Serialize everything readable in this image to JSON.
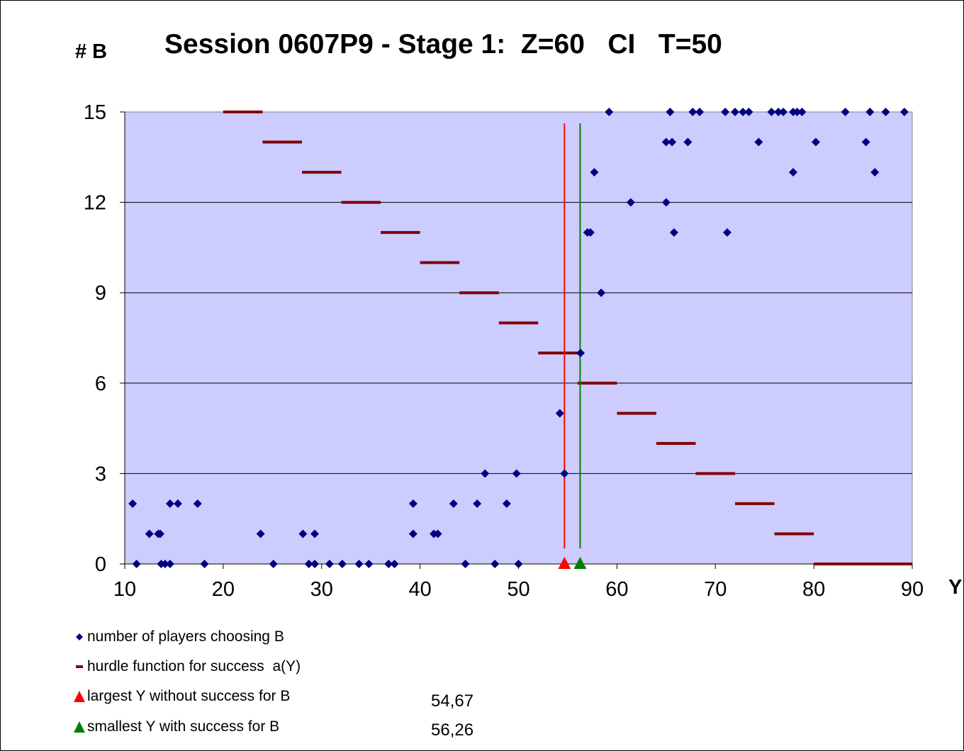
{
  "chart_data": {
    "type": "scatter",
    "title": "Session 0607P9 - Stage 1:  Z=60   CI   T=50",
    "ylabel": "# B",
    "xlabel": "Y",
    "xlim": [
      10,
      90
    ],
    "ylim": [
      0,
      15
    ],
    "x_ticks": [
      "10",
      "20",
      "30",
      "40",
      "50",
      "60",
      "70",
      "80",
      "90"
    ],
    "y_ticks": [
      "0",
      "3",
      "6",
      "9",
      "12",
      "15"
    ],
    "grid": "horizontal",
    "plot_background": "#ccccff",
    "series": [
      {
        "name": "number of players choosing B",
        "marker": "diamond",
        "color": "#000080",
        "points": [
          [
            10.8,
            2
          ],
          [
            11.2,
            0
          ],
          [
            12.5,
            1
          ],
          [
            13.4,
            1
          ],
          [
            13.6,
            1
          ],
          [
            13.7,
            0
          ],
          [
            14.1,
            0
          ],
          [
            14.6,
            0
          ],
          [
            14.6,
            2
          ],
          [
            15.4,
            2
          ],
          [
            17.4,
            2
          ],
          [
            18.1,
            0
          ],
          [
            23.8,
            1
          ],
          [
            25.1,
            0
          ],
          [
            28.1,
            1
          ],
          [
            28.7,
            0
          ],
          [
            29.3,
            1
          ],
          [
            29.3,
            0
          ],
          [
            30.8,
            0
          ],
          [
            32.1,
            0
          ],
          [
            33.8,
            0
          ],
          [
            34.8,
            0
          ],
          [
            36.8,
            0
          ],
          [
            37.4,
            0
          ],
          [
            39.3,
            2
          ],
          [
            39.3,
            1
          ],
          [
            41.4,
            1
          ],
          [
            41.8,
            1
          ],
          [
            43.4,
            2
          ],
          [
            44.6,
            0
          ],
          [
            45.8,
            2
          ],
          [
            46.6,
            3
          ],
          [
            47.6,
            0
          ],
          [
            48.8,
            2
          ],
          [
            49.8,
            3
          ],
          [
            50.0,
            0
          ],
          [
            54.2,
            5
          ],
          [
            54.67,
            3
          ],
          [
            56.3,
            7
          ],
          [
            57.0,
            11
          ],
          [
            57.3,
            11
          ],
          [
            57.7,
            13
          ],
          [
            58.4,
            9
          ],
          [
            59.2,
            15
          ],
          [
            61.4,
            12
          ],
          [
            65.0,
            14
          ],
          [
            65.0,
            12
          ],
          [
            65.4,
            15
          ],
          [
            65.6,
            14
          ],
          [
            65.8,
            11
          ],
          [
            67.2,
            14
          ],
          [
            67.7,
            15
          ],
          [
            68.4,
            15
          ],
          [
            71.2,
            11
          ],
          [
            71.0,
            15
          ],
          [
            72.0,
            15
          ],
          [
            72.8,
            15
          ],
          [
            73.4,
            15
          ],
          [
            74.4,
            14
          ],
          [
            75.7,
            15
          ],
          [
            76.4,
            15
          ],
          [
            76.9,
            15
          ],
          [
            77.9,
            13
          ],
          [
            77.9,
            15
          ],
          [
            78.3,
            15
          ],
          [
            78.8,
            15
          ],
          [
            80.2,
            14
          ],
          [
            83.2,
            15
          ],
          [
            85.3,
            14
          ],
          [
            85.7,
            15
          ],
          [
            86.2,
            13
          ],
          [
            87.3,
            15
          ],
          [
            89.2,
            15
          ]
        ]
      },
      {
        "name": "hurdle function for success  a(Y)",
        "marker": "dash",
        "color": "#800000",
        "segments": [
          {
            "from": 20,
            "to": 24,
            "y": 15
          },
          {
            "from": 24,
            "to": 28,
            "y": 14
          },
          {
            "from": 28,
            "to": 32,
            "y": 13
          },
          {
            "from": 32,
            "to": 36,
            "y": 12
          },
          {
            "from": 36,
            "to": 40,
            "y": 11
          },
          {
            "from": 40,
            "to": 44,
            "y": 10
          },
          {
            "from": 44,
            "to": 48,
            "y": 9
          },
          {
            "from": 48,
            "to": 52,
            "y": 8
          },
          {
            "from": 52,
            "to": 56,
            "y": 7
          },
          {
            "from": 56,
            "to": 60,
            "y": 6
          },
          {
            "from": 60,
            "to": 64,
            "y": 5
          },
          {
            "from": 64,
            "to": 68,
            "y": 4
          },
          {
            "from": 68,
            "to": 72,
            "y": 3
          },
          {
            "from": 72,
            "to": 76,
            "y": 2
          },
          {
            "from": 76,
            "to": 80,
            "y": 1
          },
          {
            "from": 80,
            "to": 90,
            "y": 0
          }
        ]
      },
      {
        "name": "largest Y without success for B",
        "marker": "triangle",
        "color": "#ff0000",
        "x": 54.67,
        "value_label": "54,67"
      },
      {
        "name": "smallest Y with success for B",
        "marker": "triangle",
        "color": "#008000",
        "x": 56.26,
        "value_label": "56,26"
      }
    ]
  }
}
